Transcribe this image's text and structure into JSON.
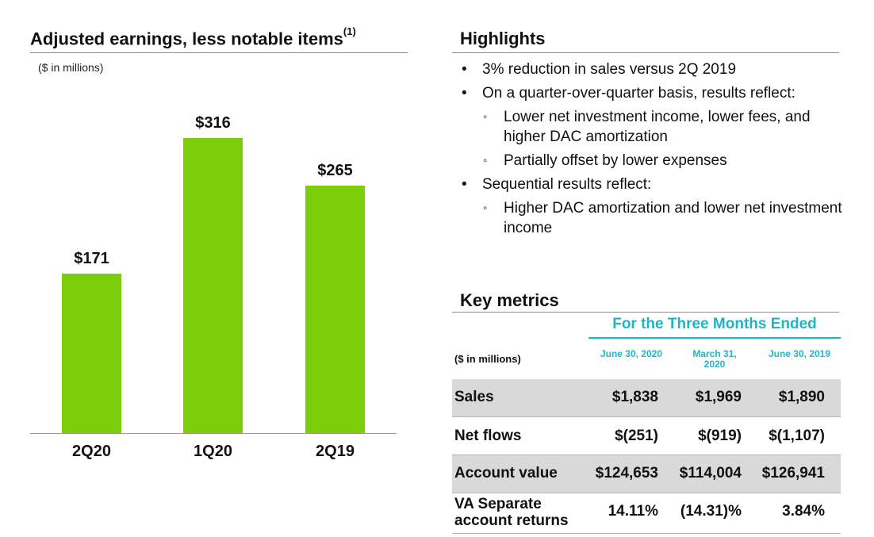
{
  "chart": {
    "heading": "Adjusted earnings, less notable items",
    "footnote_marker": "(1)",
    "unit_note": "($ in millions)"
  },
  "chart_data": {
    "type": "bar",
    "title": "Adjusted earnings, less notable items",
    "ylabel": "($ in millions)",
    "categories": [
      "2Q20",
      "1Q20",
      "2Q19"
    ],
    "values": [
      171,
      316,
      265
    ],
    "value_labels": [
      "$171",
      "$316",
      "$265"
    ],
    "ylim": [
      0,
      316
    ],
    "bar_color": "#7dce0a",
    "grid": false
  },
  "highlights": {
    "heading": "Highlights",
    "items": [
      {
        "level": 1,
        "bullet": "•",
        "text": "3% reduction in sales versus 2Q 2019"
      },
      {
        "level": 1,
        "bullet": "•",
        "text": "On a quarter-over-quarter basis, results reflect:"
      },
      {
        "level": 2,
        "bullet": "◦",
        "text": "Lower net investment income, lower fees, and higher DAC amortization"
      },
      {
        "level": 2,
        "bullet": "◦",
        "text": "Partially offset by lower expenses"
      },
      {
        "level": 1,
        "bullet": "•",
        "text": "Sequential results reflect:"
      },
      {
        "level": 2,
        "bullet": "◦",
        "text": "Higher DAC amortization and lower net investment income"
      }
    ]
  },
  "metrics": {
    "heading": "Key metrics",
    "period_header": "For the Three Months Ended",
    "unit_label": "($ in millions)",
    "columns": [
      "June 30, 2020",
      "March 31, 2020",
      "June 30, 2019"
    ],
    "rows": [
      {
        "label": "Sales",
        "values": [
          "$1,838",
          "$1,969",
          "$1,890"
        ]
      },
      {
        "label": "Net flows",
        "values": [
          "$(251)",
          "$(919)",
          "$(1,107)"
        ]
      },
      {
        "label": "Account value",
        "values": [
          "$124,653",
          "$114,004",
          "$126,941"
        ]
      },
      {
        "label": "VA Separate account returns",
        "values": [
          "14.11%",
          "(14.31)%",
          "3.84%"
        ]
      }
    ]
  },
  "colors": {
    "accent_teal": "#1fb5c7",
    "bar_green": "#7dce0a",
    "row_shade": "#d9d9d9"
  }
}
